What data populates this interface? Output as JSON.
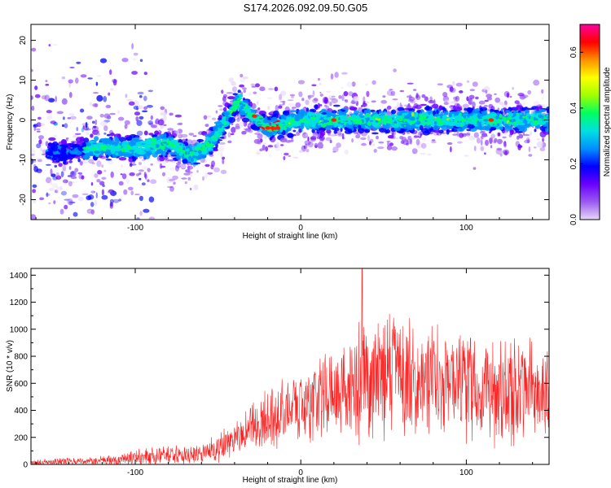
{
  "title": "S174.2026.092.09.50.G05",
  "chart_data": [
    {
      "type": "heatmap",
      "xlabel": "Height of straight line (km)",
      "ylabel": "Frequency (Hz)",
      "xlim": [
        -163,
        150
      ],
      "ylim": [
        -25,
        24
      ],
      "xticks": [
        -100,
        0,
        100
      ],
      "xtick_labels": [
        "-100",
        "0",
        "100"
      ],
      "yticks": [
        -20,
        -10,
        0,
        10,
        20
      ],
      "ytick_labels": [
        "-20",
        "-10",
        "0",
        "10",
        "20"
      ],
      "ridge": [
        {
          "x": -140,
          "y": -8
        },
        {
          "x": -120,
          "y": -7
        },
        {
          "x": -100,
          "y": -7
        },
        {
          "x": -80,
          "y": -6
        },
        {
          "x": -65,
          "y": -9
        },
        {
          "x": -55,
          "y": -6
        },
        {
          "x": -45,
          "y": 0
        },
        {
          "x": -38,
          "y": 5
        },
        {
          "x": -30,
          "y": 1
        },
        {
          "x": -20,
          "y": -2
        },
        {
          "x": -10,
          "y": -1
        },
        {
          "x": 0,
          "y": 0
        },
        {
          "x": 20,
          "y": 0
        },
        {
          "x": 50,
          "y": 0
        },
        {
          "x": 80,
          "y": 0
        },
        {
          "x": 110,
          "y": 0
        },
        {
          "x": 150,
          "y": 0
        }
      ],
      "colorbar": {
        "label": "Normalized spectral amplitude",
        "range": [
          0,
          0.7
        ],
        "ticks": [
          0.0,
          0.2,
          0.4,
          0.6
        ],
        "tick_labels": [
          "0.0",
          "0.2",
          "0.4",
          "0.6"
        ],
        "stops": [
          "#e8d8f8",
          "#9a5af0",
          "#6a00ff",
          "#0000ff",
          "#0090ff",
          "#00e0e0",
          "#00ff60",
          "#a0ff00",
          "#ffff00",
          "#ff9000",
          "#ff0000",
          "#ff00a0"
        ]
      }
    },
    {
      "type": "line",
      "xlabel": "Height of straight line (km)",
      "ylabel": "SNR (10 * v/v)",
      "xlim": [
        -163,
        150
      ],
      "ylim": [
        0,
        1450
      ],
      "xticks": [
        -100,
        0,
        100
      ],
      "xtick_labels": [
        "-100",
        "0",
        "100"
      ],
      "yticks": [
        0,
        200,
        400,
        600,
        800,
        1000,
        1200,
        1400
      ],
      "ytick_labels": [
        "0",
        "200",
        "400",
        "600",
        "800",
        "1000",
        "1200",
        "1400"
      ],
      "color": "#ff2020",
      "envelope": [
        {
          "x": -163,
          "mean": 15,
          "spread": 25
        },
        {
          "x": -120,
          "mean": 25,
          "spread": 40
        },
        {
          "x": -100,
          "mean": 50,
          "spread": 70
        },
        {
          "x": -80,
          "mean": 80,
          "spread": 90
        },
        {
          "x": -60,
          "mean": 70,
          "spread": 80
        },
        {
          "x": -50,
          "mean": 120,
          "spread": 120
        },
        {
          "x": -40,
          "mean": 200,
          "spread": 150
        },
        {
          "x": -20,
          "mean": 330,
          "spread": 250
        },
        {
          "x": 0,
          "mean": 430,
          "spread": 300
        },
        {
          "x": 20,
          "mean": 560,
          "spread": 420
        },
        {
          "x": 40,
          "mean": 620,
          "spread": 500
        },
        {
          "x": 80,
          "mean": 630,
          "spread": 500
        },
        {
          "x": 120,
          "mean": 560,
          "spread": 480
        },
        {
          "x": 150,
          "mean": 540,
          "spread": 450
        }
      ],
      "peak": {
        "x": 37,
        "y": 1450
      }
    }
  ]
}
